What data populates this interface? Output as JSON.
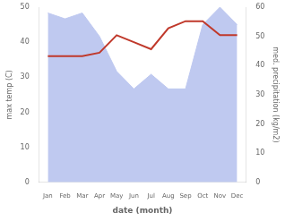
{
  "chart_data": {
    "type": "line",
    "categories": [
      "Jan",
      "Feb",
      "Mar",
      "Apr",
      "May",
      "Jun",
      "Jul",
      "Aug",
      "Sep",
      "Oct",
      "Nov",
      "Dec"
    ],
    "series": [
      {
        "type": "area",
        "color": "#bfc9f0",
        "axis": "y2",
        "values": [
          58,
          56,
          58,
          50,
          38,
          32,
          37,
          32,
          32,
          54,
          60,
          54
        ]
      },
      {
        "type": "line",
        "color": "#c0392b",
        "values": [
          36,
          36,
          36,
          37,
          42,
          40,
          38,
          44,
          46,
          46,
          42,
          42
        ]
      }
    ],
    "xlabel": "date (month)",
    "ylabel": "max temp (C)",
    "y2label": "med. precipitation (kg/m2)",
    "ylim": [
      0,
      50
    ],
    "yticks": [
      0,
      10,
      20,
      30,
      40,
      50
    ],
    "y2lim": [
      0,
      60
    ],
    "y2ticks": [
      0,
      10,
      20,
      30,
      40,
      50,
      60
    ],
    "grid": false
  }
}
